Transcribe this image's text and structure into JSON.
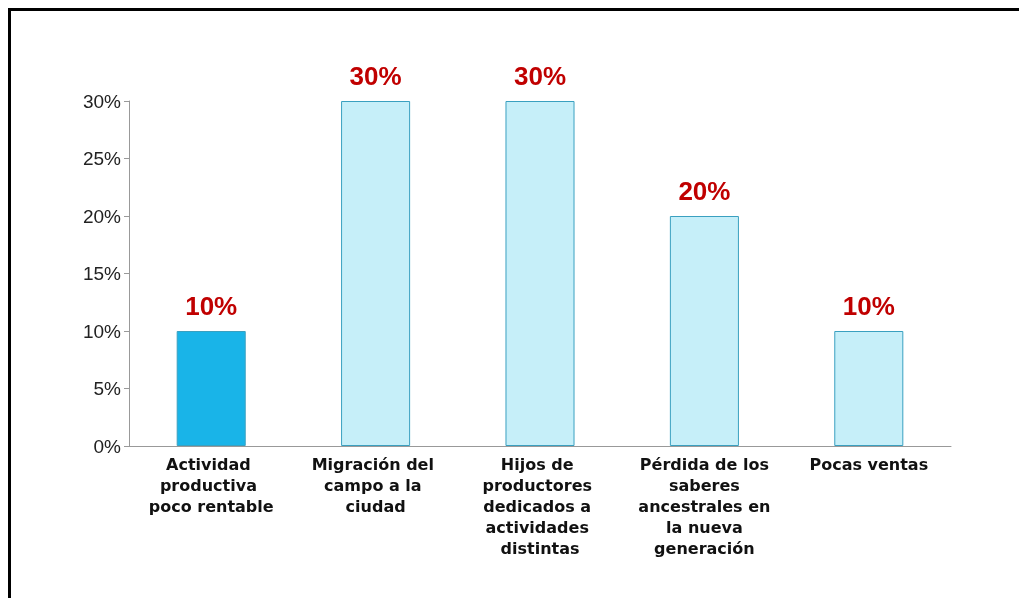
{
  "chart_data": {
    "type": "bar",
    "categories": [
      "Actividad productiva poco rentable",
      "Migración del campo a la ciudad",
      "Hijos de productores dedicados a actividades distintas",
      "Pérdida de los saberes ancestrales en la nueva generación",
      "Pocas ventas"
    ],
    "values": [
      10,
      30,
      30,
      20,
      10
    ],
    "colors": [
      "#19b4e8",
      "#c6eff9",
      "#c6eff9",
      "#c6eff9",
      "#c6eff9"
    ],
    "value_labels": [
      "10%",
      "30%",
      "30%",
      "20%",
      "10%"
    ],
    "ylim": [
      0,
      30
    ],
    "yticks": [
      {
        "value": 0,
        "label": "0%"
      },
      {
        "value": 5,
        "label": "5%"
      },
      {
        "value": 10,
        "label": "10%"
      },
      {
        "value": 15,
        "label": "15%"
      },
      {
        "value": 20,
        "label": "20%"
      },
      {
        "value": 25,
        "label": "25%"
      },
      {
        "value": 30,
        "label": "30%"
      }
    ],
    "grid": false
  }
}
